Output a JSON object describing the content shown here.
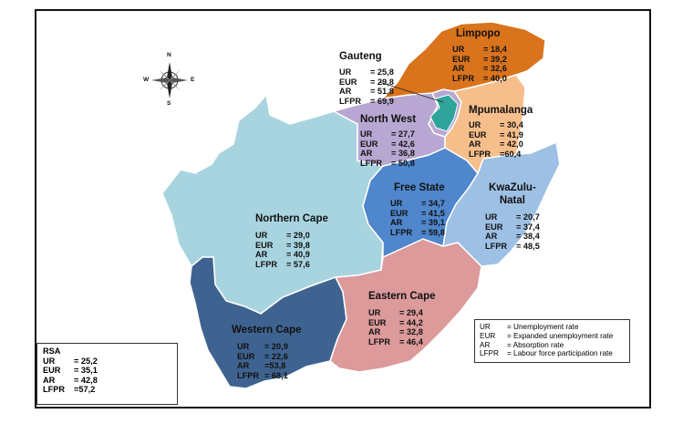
{
  "legend": {
    "items": [
      {
        "abbr": "UR",
        "desc": "= Unemployment rate"
      },
      {
        "abbr": "EUR",
        "desc": "= Expanded unemployment rate"
      },
      {
        "abbr": "AR",
        "desc": "= Absorption  rate"
      },
      {
        "abbr": "LFPR",
        "desc": "= Labour force participation rate"
      }
    ]
  },
  "national": {
    "name": "RSA",
    "stats": [
      {
        "key": "UR",
        "val": "= 25,2"
      },
      {
        "key": "EUR",
        "val": "= 35,1"
      },
      {
        "key": "AR",
        "val": "= 42,8"
      },
      {
        "key": "LFPR",
        "val": "=57,2"
      }
    ]
  },
  "compass": {
    "n": "N",
    "s": "S",
    "e": "E",
    "w": "W"
  },
  "provinces": [
    {
      "id": "limpopo",
      "name": "Limpopo",
      "color": "#d9731c",
      "stats": [
        {
          "key": "UR",
          "val": "= 18,4"
        },
        {
          "key": "EUR",
          "val": "= 39,2"
        },
        {
          "key": "AR",
          "val": "= 32,6"
        },
        {
          "key": "LFPR",
          "val": "= 40,0"
        }
      ]
    },
    {
      "id": "gauteng",
      "name": "Gauteng",
      "color": "#b8a7d2",
      "stats": [
        {
          "key": "UR",
          "val": "= 25,8"
        },
        {
          "key": "EUR",
          "val": "= 29,8"
        },
        {
          "key": "AR",
          "val": "= 51,8"
        },
        {
          "key": "LFPR",
          "val": "= 69,9"
        }
      ]
    },
    {
      "id": "mpumalanga",
      "name": "Mpumalanga",
      "color": "#f6be8a",
      "stats": [
        {
          "key": "UR",
          "val": "= 30,4"
        },
        {
          "key": "EUR",
          "val": "= 41,9"
        },
        {
          "key": "AR",
          "val": "= 42,0"
        },
        {
          "key": "LFPR",
          "val": "=60,4"
        }
      ]
    },
    {
      "id": "northwest",
      "name": "North West",
      "color": "#b8a7d2",
      "stats": [
        {
          "key": "UR",
          "val": "= 27,7"
        },
        {
          "key": "EUR",
          "val": "= 42,6"
        },
        {
          "key": "AR",
          "val": "= 36,8"
        },
        {
          "key": "LFPR",
          "val": "= 50,8"
        }
      ]
    },
    {
      "id": "freestate",
      "name": "Free State",
      "color": "#4f86cc",
      "stats": [
        {
          "key": "UR",
          "val": "= 34,7"
        },
        {
          "key": "EUR",
          "val": "= 41,5"
        },
        {
          "key": "AR",
          "val": "= 39,1"
        },
        {
          "key": "LFPR",
          "val": "= 59,8"
        }
      ]
    },
    {
      "id": "kzn",
      "name": "KwaZulu-\nNatal",
      "color": "#9ec0e4",
      "stats": [
        {
          "key": "UR",
          "val": "= 20,7"
        },
        {
          "key": "EUR",
          "val": "= 37,4"
        },
        {
          "key": "AR",
          "val": "= 38,4"
        },
        {
          "key": "LFPR",
          "val": "= 48,5"
        }
      ]
    },
    {
      "id": "northerncape",
      "name": "Northern Cape",
      "color": "#a8d4e0",
      "stats": [
        {
          "key": "UR",
          "val": "= 29,0"
        },
        {
          "key": "EUR",
          "val": "= 39,8"
        },
        {
          "key": "AR",
          "val": "= 40,9"
        },
        {
          "key": "LFPR",
          "val": "= 57,6"
        }
      ]
    },
    {
      "id": "easterncape",
      "name": "Eastern Cape",
      "color": "#dc9a9a",
      "stats": [
        {
          "key": "UR",
          "val": "= 29,4"
        },
        {
          "key": "EUR",
          "val": "= 44,2"
        },
        {
          "key": "AR",
          "val": "= 32,8"
        },
        {
          "key": "LFPR",
          "val": "= 46,4"
        }
      ]
    },
    {
      "id": "westerncape",
      "name": "Western Cape",
      "color": "#3f6390",
      "stats": [
        {
          "key": "UR",
          "val": "= 20,9"
        },
        {
          "key": "EUR",
          "val": "= 22,6"
        },
        {
          "key": "AR",
          "val": "=53,8"
        },
        {
          "key": "LFPR",
          "val": "= 68,1"
        }
      ]
    }
  ]
}
